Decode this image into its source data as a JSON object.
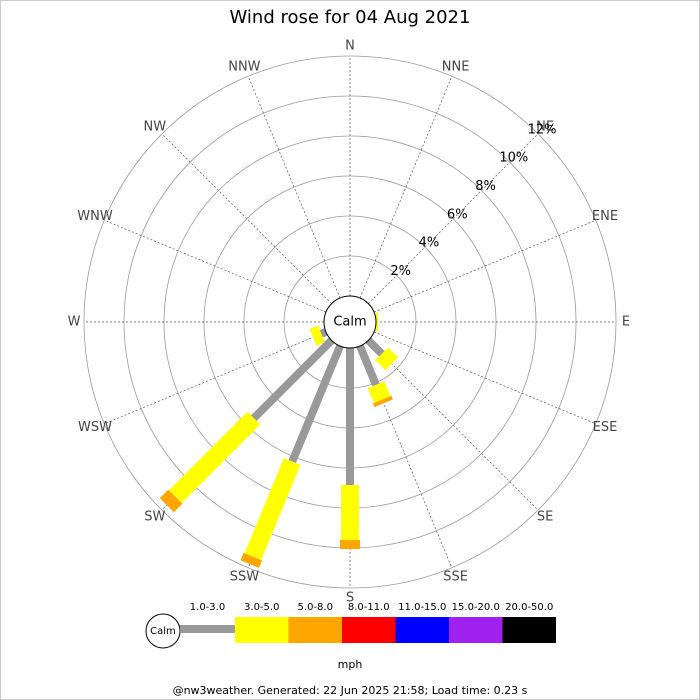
{
  "chart_data": {
    "type": "windrose",
    "title": "Wind rose for 04 Aug 2021",
    "categories": [
      "N",
      "NNE",
      "NE",
      "ENE",
      "E",
      "ESE",
      "SE",
      "SSE",
      "S",
      "SSW",
      "SW",
      "WSW",
      "W",
      "WNW",
      "NW",
      "NNW"
    ],
    "calm_label": "Calm",
    "series": [
      {
        "name": "1.0-3.0",
        "color": "#999999",
        "values": [
          0,
          0,
          0,
          0,
          0,
          0,
          0.95,
          2.1,
          6.85,
          6.25,
          5.5,
          0.25,
          0,
          0,
          0,
          0
        ]
      },
      {
        "name": "3.0-5.0",
        "color": "#ffff00",
        "values": [
          0,
          0,
          0,
          0,
          0.1,
          0,
          0.7,
          0.8,
          2.75,
          5.15,
          5.55,
          0.45,
          0,
          0,
          0,
          0
        ]
      },
      {
        "name": "5.0-8.0",
        "color": "#ffa500",
        "values": [
          0,
          0,
          0,
          0,
          0,
          0,
          0,
          0.2,
          0.45,
          0.4,
          0.6,
          0,
          0,
          0,
          0,
          0
        ]
      },
      {
        "name": "8.0-11.0",
        "color": "#ff0000",
        "values": [
          0,
          0,
          0,
          0,
          0,
          0,
          0,
          0,
          0,
          0,
          0,
          0,
          0,
          0,
          0,
          0
        ]
      },
      {
        "name": "11.0-15.0",
        "color": "#0000ff",
        "values": [
          0,
          0,
          0,
          0,
          0,
          0,
          0,
          0,
          0,
          0,
          0,
          0,
          0,
          0,
          0,
          0
        ]
      },
      {
        "name": "15.0-20.0",
        "color": "#a020f0",
        "values": [
          0,
          0,
          0,
          0,
          0,
          0,
          0,
          0,
          0,
          0,
          0,
          0,
          0,
          0,
          0,
          0
        ]
      },
      {
        "name": "20.0-50.0",
        "color": "#000000",
        "values": [
          0,
          0,
          0,
          0,
          0,
          0,
          0,
          0,
          0,
          0,
          0,
          0,
          0,
          0,
          0,
          0
        ]
      }
    ],
    "ylim": [
      0,
      12
    ],
    "yticks": [
      {
        "value": 2,
        "label": "2%"
      },
      {
        "value": 4,
        "label": "4%"
      },
      {
        "value": 6,
        "label": "6%"
      },
      {
        "value": 8,
        "label": "8%"
      },
      {
        "value": 10,
        "label": "10%"
      },
      {
        "value": 12,
        "label": "12%"
      }
    ],
    "unit": "mph",
    "footer": "@nw3weather. Generated: 22 Jun 2025 21:58; Load time: 0.23 s"
  }
}
